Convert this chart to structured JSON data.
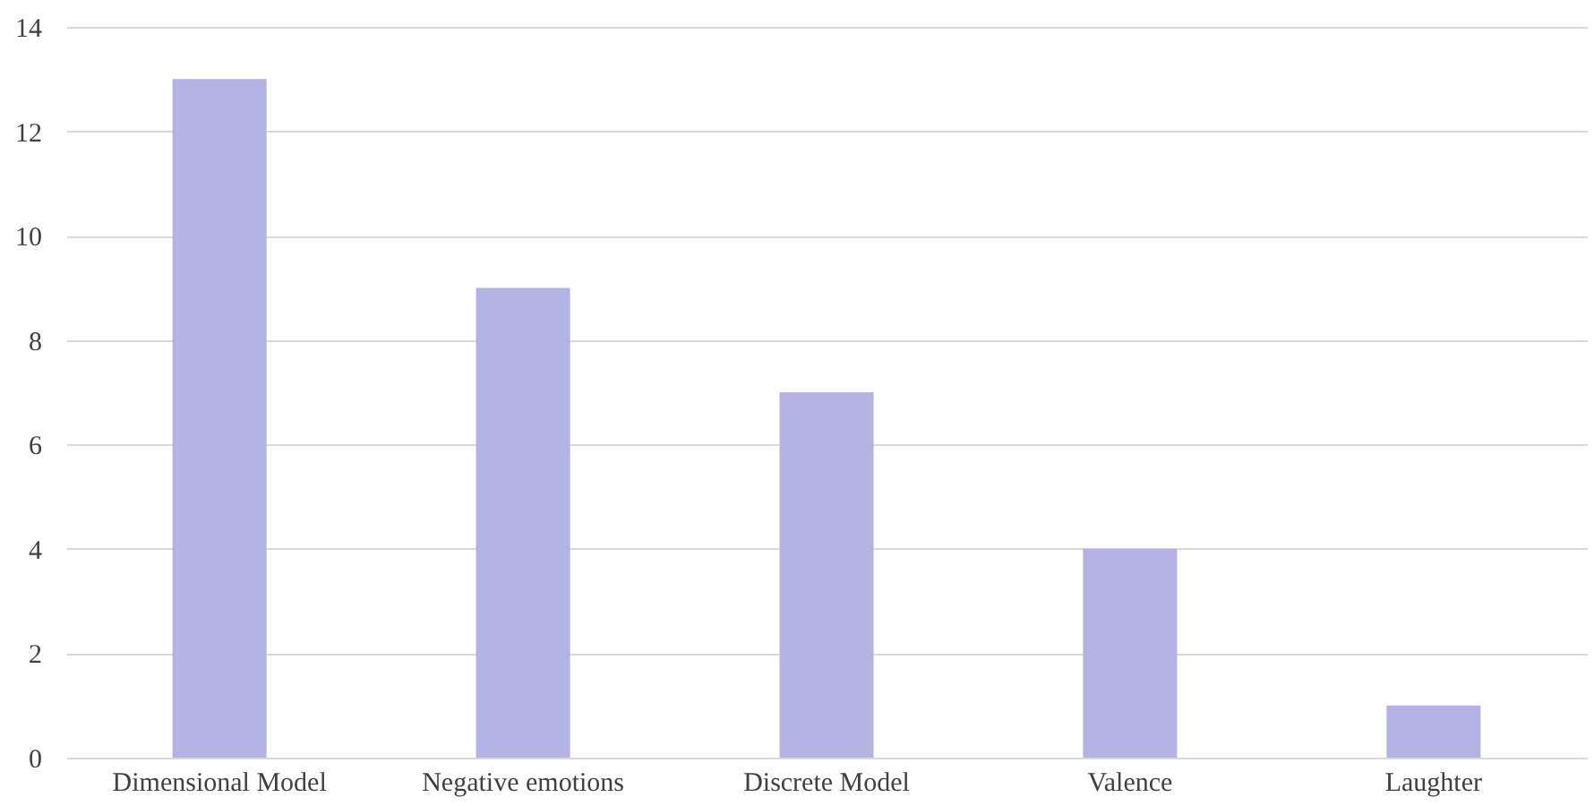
{
  "chart_data": {
    "type": "bar",
    "categories": [
      "Dimensional Model",
      "Negative emotions",
      "Discrete Model",
      "Valence",
      "Laughter"
    ],
    "values": [
      13,
      9,
      7,
      4,
      1
    ],
    "color": "#b4b4e4",
    "ylim": [
      0,
      14
    ],
    "yticks": [
      0,
      2,
      4,
      6,
      8,
      10,
      12,
      14
    ],
    "grid": "y"
  }
}
